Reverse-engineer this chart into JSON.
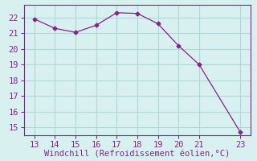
{
  "x": [
    13,
    14,
    15,
    16,
    17,
    18,
    19,
    20,
    21,
    23
  ],
  "y": [
    21.9,
    21.3,
    21.05,
    21.5,
    22.3,
    22.25,
    21.6,
    20.2,
    19.0,
    14.7
  ],
  "line_color": "#882288",
  "marker": "D",
  "marker_size": 2.5,
  "xlabel": "Windchill (Refroidissement éolien,°C)",
  "xlabel_color": "#882288",
  "xlim": [
    12.5,
    23.5
  ],
  "ylim": [
    14.5,
    22.8
  ],
  "xticks": [
    13,
    14,
    15,
    16,
    17,
    18,
    19,
    20,
    21,
    23
  ],
  "yticks": [
    15,
    16,
    17,
    18,
    19,
    20,
    21,
    22
  ],
  "bg_color": "#d8f0f0",
  "grid_color": "#b0d8d8",
  "tick_color": "#882288",
  "spine_color": "#882288",
  "font_size": 7.5
}
